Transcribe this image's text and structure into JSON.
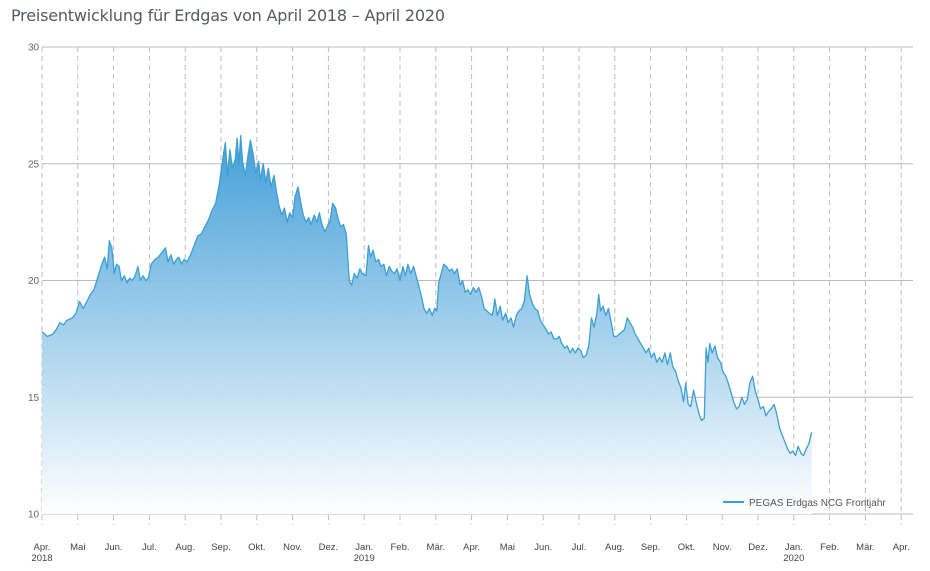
{
  "chart_data": {
    "type": "area",
    "title": "Preisentwicklung für Erdgas von April 2018 – April 2020",
    "xlabel": "",
    "ylabel": "",
    "ylim": [
      10,
      30
    ],
    "y_ticks": [
      10,
      15,
      20,
      25,
      30
    ],
    "x_ticks": [
      {
        "label": "Apr.",
        "year": "2018",
        "x": 0
      },
      {
        "label": "Mai",
        "year": "",
        "x": 1
      },
      {
        "label": "Jun.",
        "year": "",
        "x": 2
      },
      {
        "label": "Jul.",
        "year": "",
        "x": 3
      },
      {
        "label": "Aug.",
        "year": "",
        "x": 4
      },
      {
        "label": "Sep.",
        "year": "",
        "x": 5
      },
      {
        "label": "Okt.",
        "year": "",
        "x": 6
      },
      {
        "label": "Nov.",
        "year": "",
        "x": 7
      },
      {
        "label": "Dez.",
        "year": "",
        "x": 8
      },
      {
        "label": "Jan.",
        "year": "2019",
        "x": 9
      },
      {
        "label": "Feb.",
        "year": "",
        "x": 10
      },
      {
        "label": "Mär.",
        "year": "",
        "x": 11
      },
      {
        "label": "Apr.",
        "year": "",
        "x": 12
      },
      {
        "label": "Mai",
        "year": "",
        "x": 13
      },
      {
        "label": "Jun.",
        "year": "",
        "x": 14
      },
      {
        "label": "Jul.",
        "year": "",
        "x": 15
      },
      {
        "label": "Aug.",
        "year": "",
        "x": 16
      },
      {
        "label": "Sep.",
        "year": "",
        "x": 17
      },
      {
        "label": "Okt.",
        "year": "",
        "x": 18
      },
      {
        "label": "Nov.",
        "year": "",
        "x": 19
      },
      {
        "label": "Dez.",
        "year": "",
        "x": 20
      },
      {
        "label": "Jan.",
        "year": "2020",
        "x": 21
      },
      {
        "label": "Feb.",
        "year": "",
        "x": 22
      },
      {
        "label": "Mär.",
        "year": "",
        "x": 23
      },
      {
        "label": "Apr.",
        "year": "",
        "x": 24
      }
    ],
    "xlim": [
      0,
      24.5
    ],
    "grid": {
      "horizontal": true,
      "vertical": "dashed"
    },
    "legend": {
      "position": "bottom-right"
    },
    "colors": {
      "line": "#3b9fd3",
      "fill_top": "#3a9ad6",
      "fill_bottom": "#ffffff",
      "grid": "#bbbbbb"
    },
    "series": [
      {
        "name": "PEGAS Erdgas NCG Frontjahr",
        "points": [
          [
            0.0,
            17.8
          ],
          [
            0.15,
            17.6
          ],
          [
            0.3,
            17.7
          ],
          [
            0.4,
            17.9
          ],
          [
            0.5,
            18.2
          ],
          [
            0.6,
            18.1
          ],
          [
            0.7,
            18.3
          ],
          [
            0.85,
            18.4
          ],
          [
            0.95,
            18.6
          ],
          [
            1.05,
            19.1
          ],
          [
            1.15,
            18.8
          ],
          [
            1.25,
            19.1
          ],
          [
            1.35,
            19.4
          ],
          [
            1.45,
            19.6
          ],
          [
            1.55,
            20.1
          ],
          [
            1.65,
            20.6
          ],
          [
            1.75,
            21.0
          ],
          [
            1.82,
            20.5
          ],
          [
            1.88,
            21.7
          ],
          [
            1.95,
            21.4
          ],
          [
            2.02,
            20.3
          ],
          [
            2.08,
            20.7
          ],
          [
            2.15,
            20.6
          ],
          [
            2.22,
            20.0
          ],
          [
            2.3,
            20.2
          ],
          [
            2.38,
            19.9
          ],
          [
            2.45,
            20.1
          ],
          [
            2.52,
            20.0
          ],
          [
            2.6,
            20.2
          ],
          [
            2.68,
            20.6
          ],
          [
            2.75,
            20.0
          ],
          [
            2.82,
            20.2
          ],
          [
            2.9,
            20.0
          ],
          [
            2.97,
            20.1
          ],
          [
            3.05,
            20.7
          ],
          [
            3.15,
            20.9
          ],
          [
            3.25,
            21.0
          ],
          [
            3.35,
            21.2
          ],
          [
            3.45,
            21.4
          ],
          [
            3.52,
            20.8
          ],
          [
            3.6,
            21.1
          ],
          [
            3.68,
            20.7
          ],
          [
            3.75,
            20.9
          ],
          [
            3.82,
            21.0
          ],
          [
            3.9,
            20.7
          ],
          [
            3.97,
            20.9
          ],
          [
            4.05,
            20.8
          ],
          [
            4.15,
            21.1
          ],
          [
            4.25,
            21.5
          ],
          [
            4.35,
            21.9
          ],
          [
            4.45,
            22.0
          ],
          [
            4.55,
            22.3
          ],
          [
            4.65,
            22.6
          ],
          [
            4.75,
            23.0
          ],
          [
            4.85,
            23.3
          ],
          [
            4.95,
            24.1
          ],
          [
            5.05,
            25.2
          ],
          [
            5.12,
            25.9
          ],
          [
            5.18,
            24.5
          ],
          [
            5.25,
            25.6
          ],
          [
            5.32,
            24.8
          ],
          [
            5.4,
            25.2
          ],
          [
            5.45,
            26.1
          ],
          [
            5.5,
            25.0
          ],
          [
            5.55,
            26.2
          ],
          [
            5.6,
            25.1
          ],
          [
            5.68,
            24.5
          ],
          [
            5.75,
            25.3
          ],
          [
            5.82,
            26.0
          ],
          [
            5.9,
            25.4
          ],
          [
            5.97,
            24.6
          ],
          [
            6.05,
            25.1
          ],
          [
            6.1,
            24.3
          ],
          [
            6.18,
            25.0
          ],
          [
            6.25,
            24.2
          ],
          [
            6.32,
            24.8
          ],
          [
            6.4,
            24.0
          ],
          [
            6.48,
            24.5
          ],
          [
            6.55,
            23.8
          ],
          [
            6.62,
            23.2
          ],
          [
            6.7,
            22.8
          ],
          [
            6.77,
            23.1
          ],
          [
            6.85,
            22.5
          ],
          [
            6.92,
            22.9
          ],
          [
            7.0,
            22.7
          ],
          [
            7.07,
            23.6
          ],
          [
            7.15,
            24.0
          ],
          [
            7.22,
            23.4
          ],
          [
            7.3,
            22.8
          ],
          [
            7.38,
            22.5
          ],
          [
            7.45,
            22.7
          ],
          [
            7.52,
            22.4
          ],
          [
            7.6,
            22.8
          ],
          [
            7.68,
            22.5
          ],
          [
            7.75,
            22.9
          ],
          [
            7.82,
            22.4
          ],
          [
            7.9,
            22.1
          ],
          [
            7.97,
            22.3
          ],
          [
            8.05,
            22.6
          ],
          [
            8.12,
            23.3
          ],
          [
            8.2,
            23.1
          ],
          [
            8.28,
            22.6
          ],
          [
            8.35,
            22.3
          ],
          [
            8.42,
            22.4
          ],
          [
            8.5,
            22.0
          ],
          [
            8.58,
            20.0
          ],
          [
            8.65,
            19.8
          ],
          [
            8.72,
            20.3
          ],
          [
            8.8,
            20.1
          ],
          [
            8.88,
            20.5
          ],
          [
            8.95,
            20.3
          ],
          [
            9.05,
            20.2
          ],
          [
            9.12,
            21.5
          ],
          [
            9.18,
            21.0
          ],
          [
            9.25,
            21.3
          ],
          [
            9.32,
            20.8
          ],
          [
            9.4,
            20.9
          ],
          [
            9.47,
            20.6
          ],
          [
            9.55,
            20.7
          ],
          [
            9.62,
            20.2
          ],
          [
            9.7,
            20.6
          ],
          [
            9.77,
            20.4
          ],
          [
            9.85,
            20.3
          ],
          [
            9.92,
            20.5
          ],
          [
            10.0,
            20.0
          ],
          [
            10.08,
            20.6
          ],
          [
            10.15,
            20.2
          ],
          [
            10.22,
            20.7
          ],
          [
            10.3,
            20.3
          ],
          [
            10.38,
            20.6
          ],
          [
            10.45,
            20.2
          ],
          [
            10.52,
            19.8
          ],
          [
            10.6,
            19.3
          ],
          [
            10.67,
            18.8
          ],
          [
            10.75,
            18.6
          ],
          [
            10.82,
            18.8
          ],
          [
            10.9,
            18.5
          ],
          [
            10.97,
            18.8
          ],
          [
            11.03,
            18.7
          ],
          [
            11.08,
            19.9
          ],
          [
            11.15,
            20.3
          ],
          [
            11.22,
            20.7
          ],
          [
            11.3,
            20.6
          ],
          [
            11.38,
            20.4
          ],
          [
            11.45,
            20.5
          ],
          [
            11.52,
            20.3
          ],
          [
            11.6,
            20.5
          ],
          [
            11.68,
            19.8
          ],
          [
            11.75,
            20.0
          ],
          [
            11.82,
            19.5
          ],
          [
            11.9,
            19.6
          ],
          [
            11.97,
            19.4
          ],
          [
            12.05,
            19.7
          ],
          [
            12.12,
            19.5
          ],
          [
            12.2,
            19.7
          ],
          [
            12.28,
            19.3
          ],
          [
            12.35,
            18.8
          ],
          [
            12.42,
            18.7
          ],
          [
            12.5,
            18.6
          ],
          [
            12.58,
            18.5
          ],
          [
            12.65,
            19.2
          ],
          [
            12.72,
            18.5
          ],
          [
            12.8,
            18.9
          ],
          [
            12.87,
            18.3
          ],
          [
            12.95,
            18.6
          ],
          [
            13.02,
            18.2
          ],
          [
            13.1,
            18.4
          ],
          [
            13.17,
            18.0
          ],
          [
            13.25,
            18.5
          ],
          [
            13.32,
            18.7
          ],
          [
            13.4,
            18.8
          ],
          [
            13.47,
            19.1
          ],
          [
            13.55,
            20.2
          ],
          [
            13.62,
            19.4
          ],
          [
            13.7,
            19.0
          ],
          [
            13.77,
            18.8
          ],
          [
            13.85,
            18.7
          ],
          [
            13.92,
            18.3
          ],
          [
            14.0,
            18.1
          ],
          [
            14.08,
            17.9
          ],
          [
            14.15,
            17.7
          ],
          [
            14.22,
            17.8
          ],
          [
            14.3,
            17.5
          ],
          [
            14.38,
            17.5
          ],
          [
            14.45,
            17.6
          ],
          [
            14.52,
            17.3
          ],
          [
            14.6,
            17.1
          ],
          [
            14.67,
            17.2
          ],
          [
            14.75,
            16.9
          ],
          [
            14.82,
            17.1
          ],
          [
            14.9,
            16.9
          ],
          [
            14.97,
            17.1
          ],
          [
            15.05,
            17.0
          ],
          [
            15.12,
            16.7
          ],
          [
            15.2,
            16.8
          ],
          [
            15.27,
            17.2
          ],
          [
            15.35,
            18.4
          ],
          [
            15.42,
            18.0
          ],
          [
            15.5,
            18.6
          ],
          [
            15.55,
            19.4
          ],
          [
            15.6,
            18.7
          ],
          [
            15.67,
            18.9
          ],
          [
            15.75,
            18.5
          ],
          [
            15.82,
            18.8
          ],
          [
            15.9,
            18.2
          ],
          [
            15.97,
            17.6
          ],
          [
            16.05,
            17.6
          ],
          [
            16.12,
            17.7
          ],
          [
            16.2,
            17.8
          ],
          [
            16.27,
            17.9
          ],
          [
            16.35,
            18.4
          ],
          [
            16.42,
            18.2
          ],
          [
            16.5,
            18.0
          ],
          [
            16.57,
            17.7
          ],
          [
            16.65,
            17.5
          ],
          [
            16.72,
            17.3
          ],
          [
            16.8,
            17.1
          ],
          [
            16.87,
            16.9
          ],
          [
            16.95,
            17.1
          ],
          [
            17.02,
            16.7
          ],
          [
            17.1,
            16.9
          ],
          [
            17.17,
            16.5
          ],
          [
            17.25,
            16.7
          ],
          [
            17.32,
            16.5
          ],
          [
            17.4,
            16.9
          ],
          [
            17.47,
            16.4
          ],
          [
            17.55,
            16.9
          ],
          [
            17.62,
            16.3
          ],
          [
            17.7,
            16.1
          ],
          [
            17.77,
            15.7
          ],
          [
            17.85,
            15.4
          ],
          [
            17.92,
            14.8
          ],
          [
            17.98,
            15.6
          ],
          [
            18.05,
            14.7
          ],
          [
            18.12,
            14.6
          ],
          [
            18.2,
            15.3
          ],
          [
            18.27,
            14.8
          ],
          [
            18.35,
            14.3
          ],
          [
            18.42,
            14.0
          ],
          [
            18.5,
            14.1
          ],
          [
            18.55,
            17.1
          ],
          [
            18.6,
            16.5
          ],
          [
            18.65,
            17.3
          ],
          [
            18.72,
            16.9
          ],
          [
            18.8,
            17.2
          ],
          [
            18.87,
            16.7
          ],
          [
            18.95,
            16.5
          ],
          [
            19.02,
            16.1
          ],
          [
            19.1,
            15.9
          ],
          [
            19.17,
            15.6
          ],
          [
            19.25,
            15.2
          ],
          [
            19.32,
            14.8
          ],
          [
            19.4,
            14.5
          ],
          [
            19.47,
            14.6
          ],
          [
            19.55,
            15.0
          ],
          [
            19.62,
            14.7
          ],
          [
            19.7,
            14.9
          ],
          [
            19.77,
            15.6
          ],
          [
            19.85,
            15.9
          ],
          [
            19.92,
            15.3
          ],
          [
            20.0,
            14.9
          ],
          [
            20.07,
            14.5
          ],
          [
            20.15,
            14.6
          ],
          [
            20.22,
            14.2
          ],
          [
            20.3,
            14.4
          ],
          [
            20.37,
            14.5
          ],
          [
            20.45,
            14.7
          ],
          [
            20.52,
            14.3
          ],
          [
            20.6,
            13.7
          ],
          [
            20.67,
            13.4
          ],
          [
            20.75,
            13.1
          ],
          [
            20.82,
            12.8
          ],
          [
            20.9,
            12.6
          ],
          [
            20.97,
            12.7
          ],
          [
            21.05,
            12.5
          ],
          [
            21.12,
            12.9
          ],
          [
            21.2,
            12.6
          ],
          [
            21.27,
            12.5
          ],
          [
            21.35,
            12.8
          ],
          [
            21.42,
            13.0
          ],
          [
            21.5,
            13.5
          ]
        ]
      }
    ]
  }
}
